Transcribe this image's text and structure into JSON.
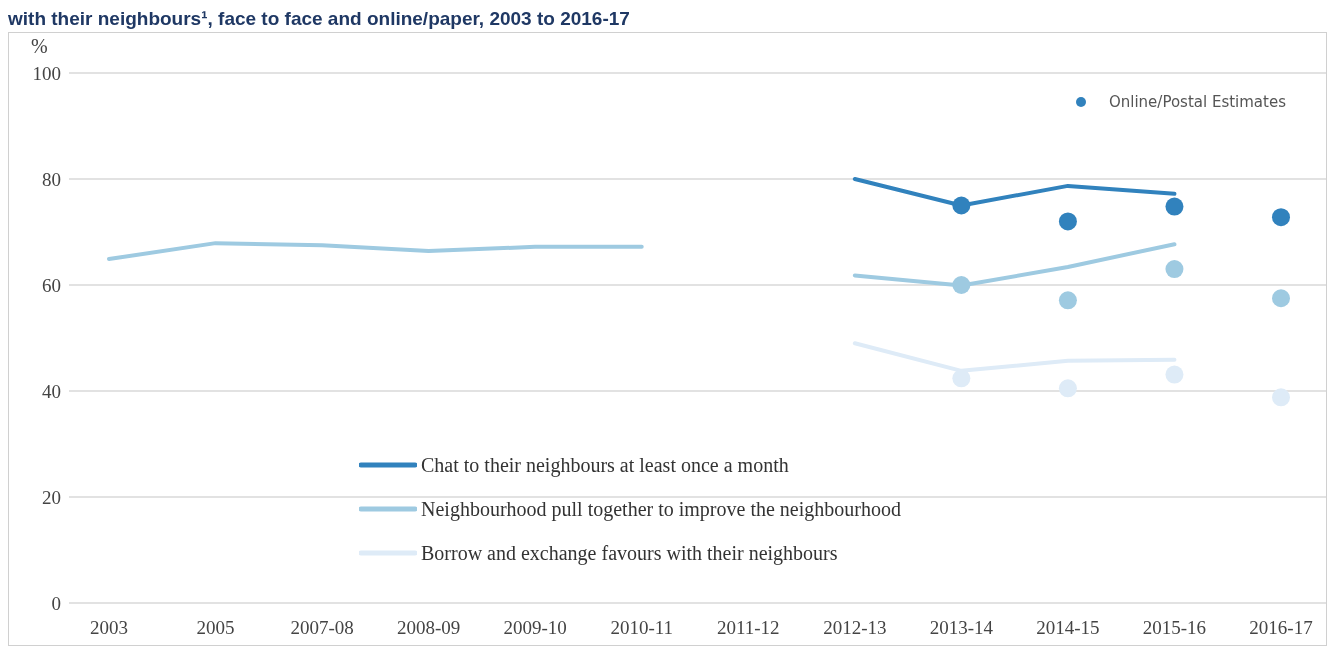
{
  "chart_data": {
    "type": "line",
    "title": "with their neighbours¹, face to face and online/paper, 2003 to 2016-17",
    "ylabel": "%",
    "categories": [
      "2003",
      "2005",
      "2007-08",
      "2008-09",
      "2009-10",
      "2010-11",
      "2011-12",
      "2012-13",
      "2013-14",
      "2014-15",
      "2015-16",
      "2016-17"
    ],
    "series": [
      {
        "name": "Chat to their neighbours at least once a month",
        "color": "#3182bd",
        "values": [
          null,
          null,
          null,
          null,
          null,
          null,
          null,
          80,
          75,
          78.7,
          77.2,
          null
        ]
      },
      {
        "name": "Neighbourhood pull together to improve the neighbourhood",
        "color": "#9ecae1",
        "values": [
          64.9,
          67.9,
          67.5,
          66.4,
          67.2,
          67.2,
          null,
          61.8,
          59.9,
          63.4,
          67.7,
          null
        ]
      },
      {
        "name": "Borrow and exchange favours with their neighbours",
        "color": "#deebf7",
        "values": [
          null,
          null,
          null,
          null,
          null,
          null,
          null,
          49,
          43.8,
          45.7,
          45.9,
          null
        ]
      },
      {
        "name": "Online/Postal Estimates",
        "type": "scatter",
        "marker": "circle",
        "color": "#3182bd",
        "values": [
          null,
          null,
          null,
          null,
          null,
          null,
          null,
          null,
          75,
          72,
          74.8,
          72.8
        ]
      },
      {
        "type": "scatter",
        "marker": "circle",
        "color": "#9ecae1",
        "values": [
          null,
          null,
          null,
          null,
          null,
          null,
          null,
          null,
          60,
          57.1,
          63,
          57.5
        ]
      },
      {
        "type": "scatter",
        "marker": "circle",
        "color": "#deebf7",
        "values": [
          null,
          null,
          null,
          null,
          null,
          null,
          null,
          null,
          42.4,
          40.5,
          43.1,
          38.8
        ]
      }
    ],
    "ylim": [
      0,
      100
    ],
    "yticks": [
      0,
      20,
      40,
      60,
      80,
      100
    ],
    "grid": "y",
    "legend": "center",
    "marker": "none",
    "line_style": "solid"
  }
}
